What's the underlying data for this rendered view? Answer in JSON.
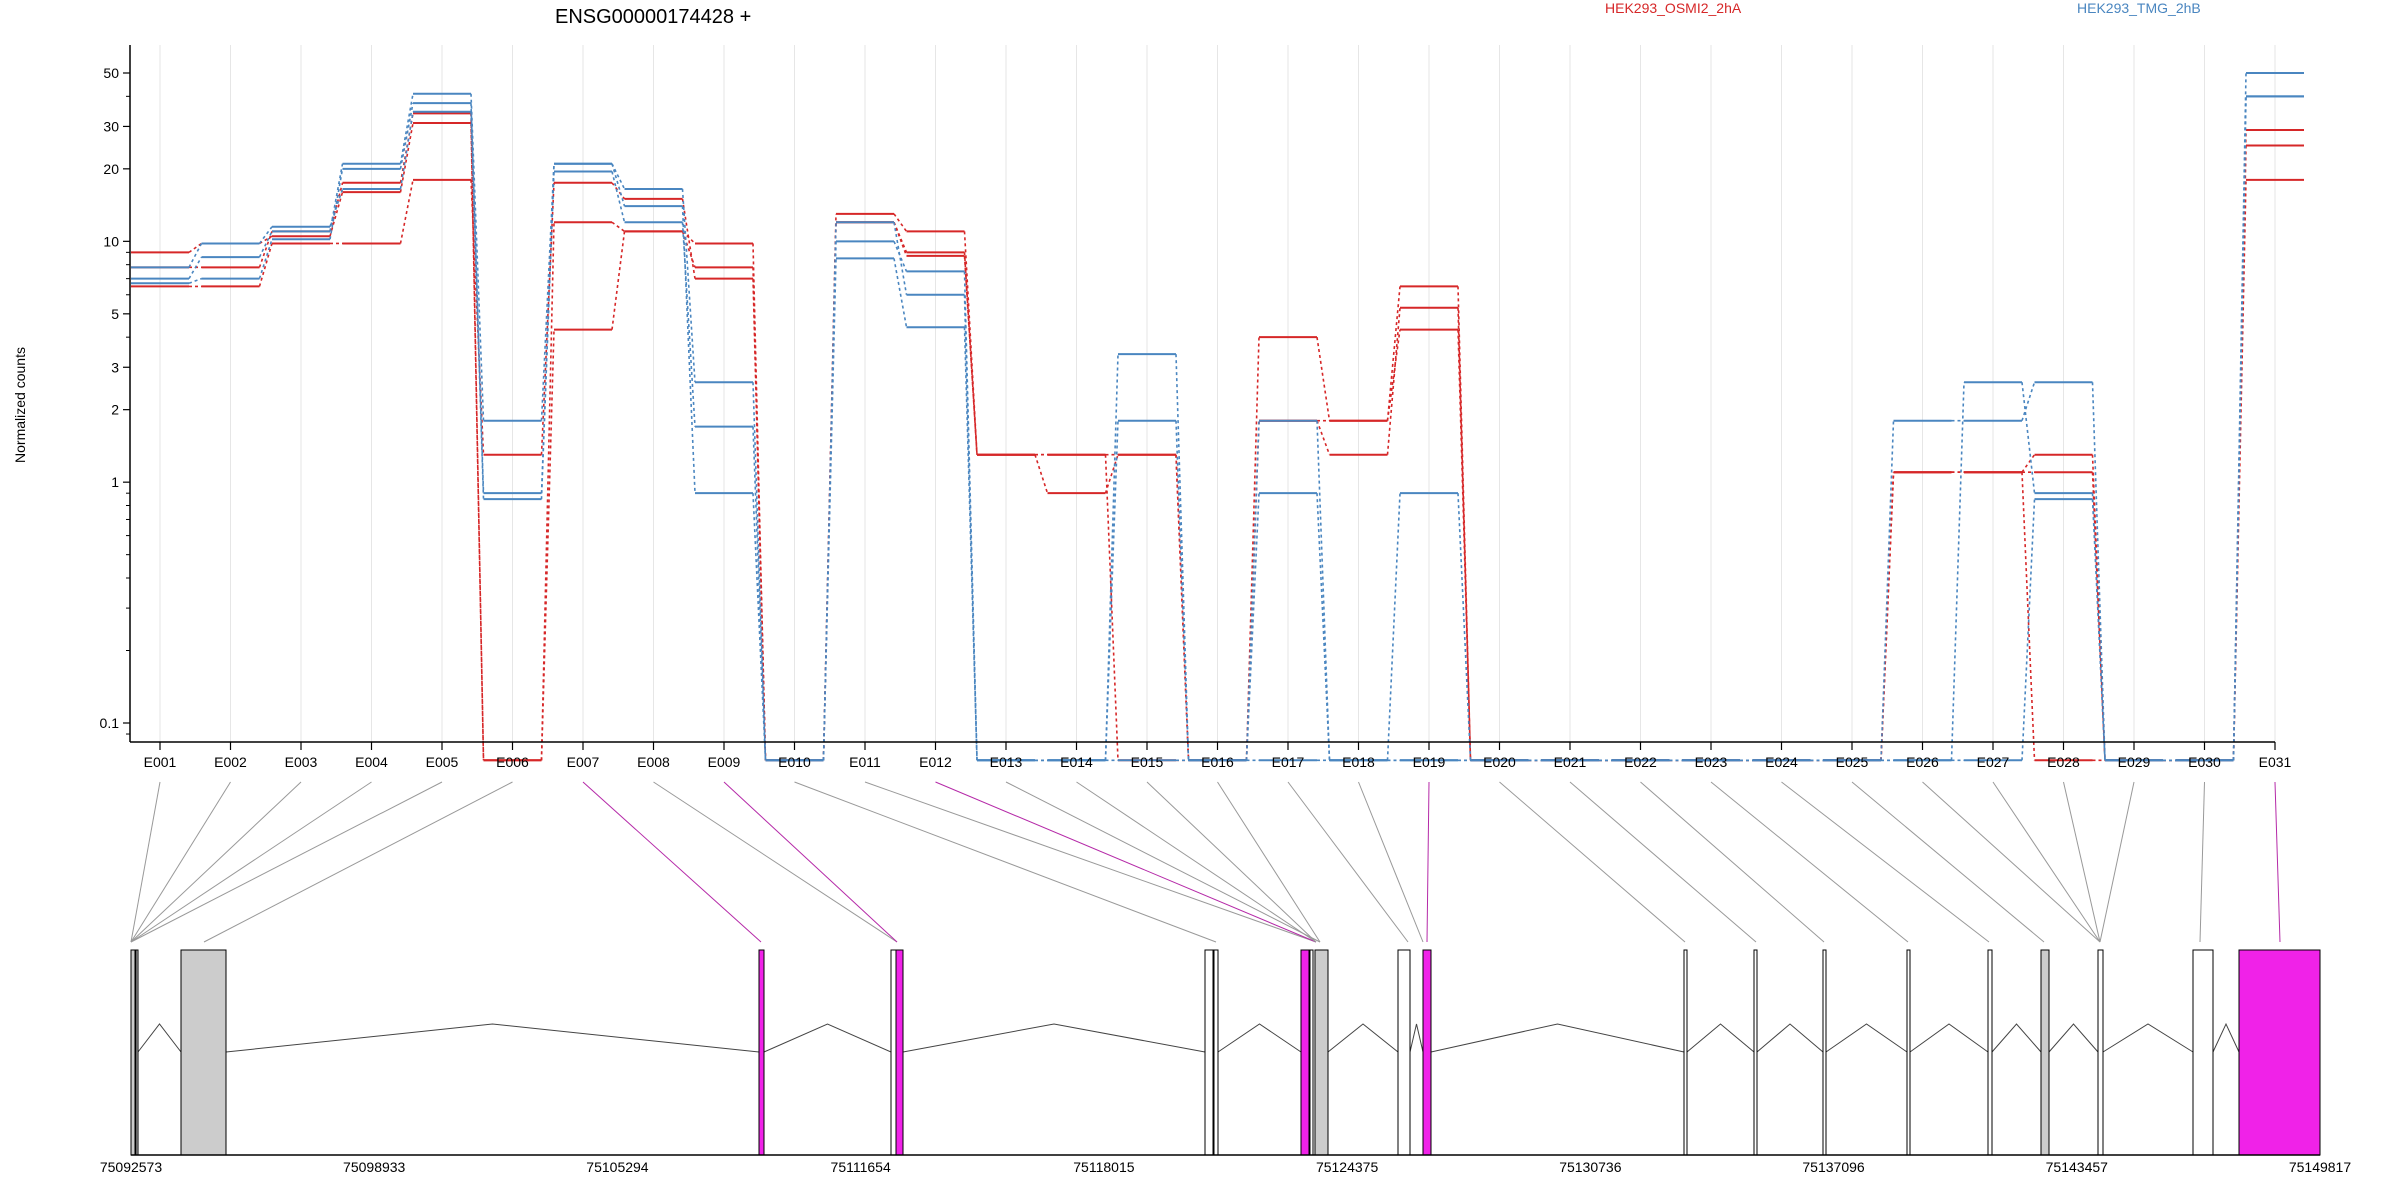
{
  "chart_data": {
    "type": "line",
    "title": "ENSG00000174428 +",
    "ylabel": "Normalized counts",
    "y_scale": "log",
    "y_ticks": [
      0.1,
      1,
      2,
      3,
      5,
      10,
      20,
      30,
      50
    ],
    "y_tick_labels": [
      "0.1",
      "1",
      "2",
      "3",
      "5",
      "10",
      "20",
      "30",
      "50"
    ],
    "grid": "vertical-light",
    "categories": [
      "E001",
      "E002",
      "E003",
      "E004",
      "E005",
      "E006",
      "E007",
      "E008",
      "E009",
      "E010",
      "E011",
      "E012",
      "E013",
      "E014",
      "E015",
      "E016",
      "E017",
      "E018",
      "E019",
      "E020",
      "E021",
      "E022",
      "E023",
      "E024",
      "E025",
      "E026",
      "E027",
      "E028",
      "E029",
      "E030",
      "E031"
    ],
    "legend": [
      {
        "label": "HEK293_OSMI2_2hA",
        "color": "#d62728"
      },
      {
        "label": "HEK293_TMG_2hB",
        "color": "#4a86c0"
      }
    ],
    "series": [
      {
        "group": "HEK293_OSMI2_2hA",
        "color": "#d62728",
        "values": [
          9,
          9.8,
          10.5,
          16,
          31,
          0.07,
          12,
          11,
          9.8,
          0.07,
          13,
          11,
          1.3,
          0.9,
          1.3,
          0.07,
          4,
          1.8,
          4.3,
          0.07,
          0.07,
          0.07,
          0.07,
          0.07,
          0.07,
          1.1,
          1.1,
          1.3,
          0.07,
          0.07,
          29
        ]
      },
      {
        "group": "HEK293_OSMI2_2hA",
        "color": "#d62728",
        "values": [
          6.5,
          6.5,
          9.8,
          9.8,
          18,
          1.3,
          17.5,
          15,
          7,
          0.07,
          12,
          9,
          1.3,
          1.3,
          0.07,
          0.07,
          1.8,
          1.3,
          5.3,
          0.07,
          0.07,
          0.07,
          0.07,
          0.07,
          0.07,
          1.1,
          1.1,
          1.1,
          0.07,
          0.07,
          25
        ]
      },
      {
        "group": "HEK293_OSMI2_2hA",
        "color": "#d62728",
        "values": [
          7.8,
          7.8,
          11,
          17.5,
          34,
          0.07,
          4.3,
          11,
          7.8,
          0.07,
          12,
          8.7,
          1.3,
          1.3,
          1.3,
          0.07,
          1.8,
          1.8,
          6.5,
          0.07,
          0.07,
          0.07,
          0.07,
          0.07,
          0.07,
          1.1,
          1.1,
          0.07,
          0.07,
          0.07,
          18
        ]
      },
      {
        "group": "HEK293_TMG_2hB",
        "color": "#4a86c0",
        "values": [
          7,
          8.6,
          11,
          21,
          41,
          1.8,
          21,
          16.5,
          2.6,
          0.07,
          10,
          7.5,
          0.07,
          0.07,
          3.4,
          0.07,
          0.9,
          0.07,
          0.9,
          0.07,
          0.07,
          0.07,
          0.07,
          0.07,
          0.07,
          1.8,
          1.8,
          2.6,
          0.07,
          0.07,
          50
        ]
      },
      {
        "group": "HEK293_TMG_2hB",
        "color": "#4a86c0",
        "values": [
          6.7,
          7,
          10.2,
          20,
          37.5,
          0.9,
          19.5,
          12,
          1.7,
          0.07,
          12,
          6,
          0.07,
          0.07,
          1.8,
          0.07,
          1.8,
          0.07,
          0.07,
          0.07,
          0.07,
          0.07,
          0.07,
          0.07,
          0.07,
          0.07,
          2.6,
          0.9,
          0.07,
          0.07,
          40
        ]
      },
      {
        "group": "HEK293_TMG_2hB",
        "color": "#4a86c0",
        "values": [
          7.8,
          9.8,
          11.5,
          16.5,
          34.5,
          0.85,
          21,
          14,
          0.9,
          0.07,
          8.5,
          4.4,
          0.07,
          0.07,
          0.07,
          0.07,
          0.07,
          0.07,
          0.07,
          0.07,
          0.07,
          0.07,
          0.07,
          0.07,
          0.07,
          0.07,
          0.07,
          0.85,
          0.07,
          0.07,
          40
        ]
      }
    ],
    "gene_model": {
      "coordinate_labels": [
        "75092573",
        "75098933",
        "75105294",
        "75111654",
        "75118015",
        "75124375",
        "75130736",
        "75137096",
        "75143457",
        "75149817"
      ],
      "coord_min": 75092573,
      "coord_max": 75149817,
      "highlight_exons": [
        "E007",
        "E009",
        "E012",
        "E019",
        "E031"
      ]
    }
  }
}
